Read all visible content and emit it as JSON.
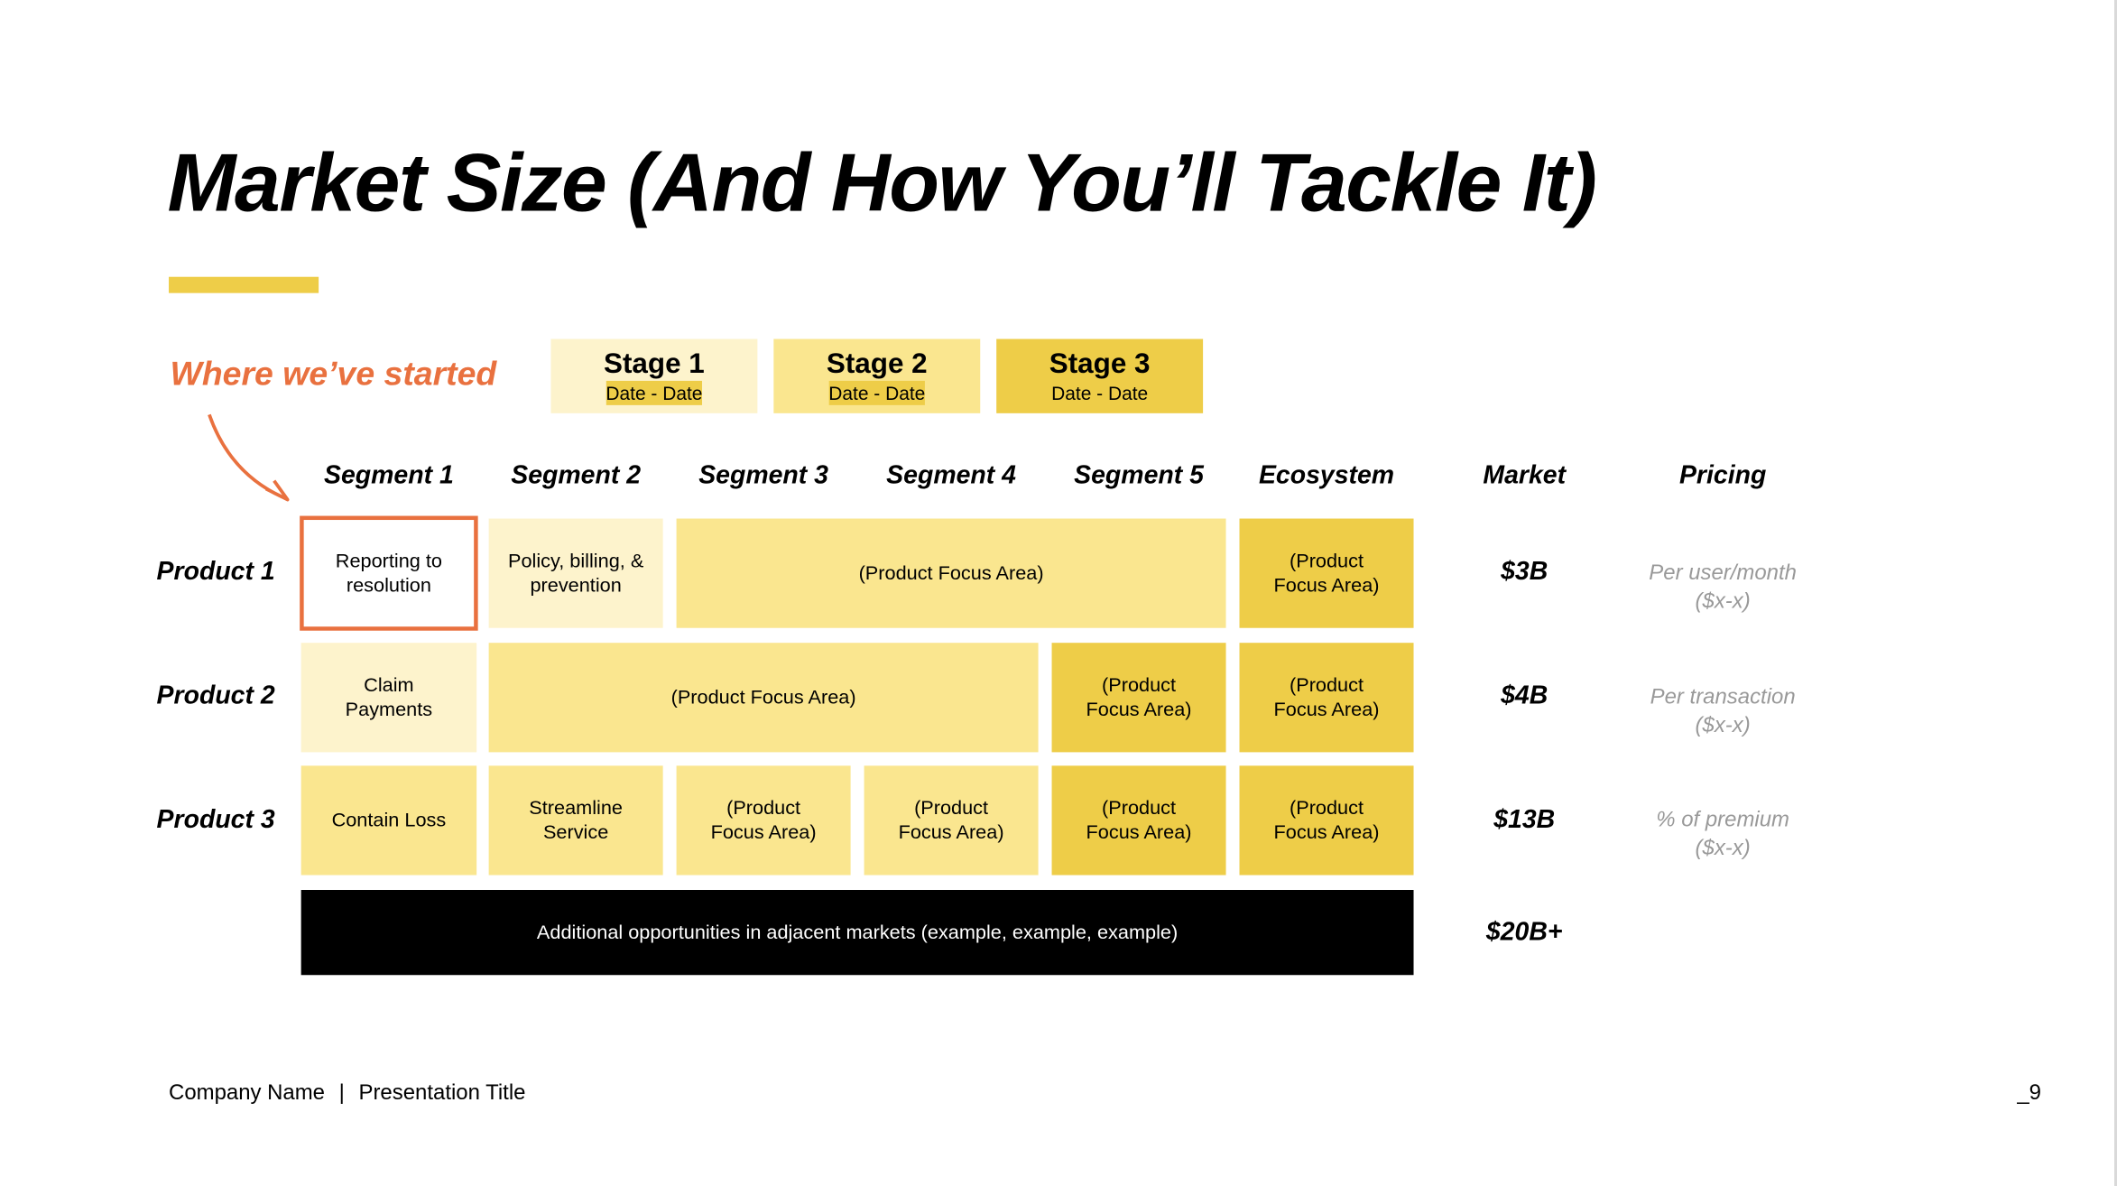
{
  "title": "Market Size (And How You’ll Tackle It)",
  "annotation": "Where we’ve started",
  "colors": {
    "stage1": "#FDF3CC",
    "stage2": "#FAE68F",
    "stage3": "#EECD48",
    "accent": "#E9713F"
  },
  "stages": [
    {
      "name": "Stage 1",
      "dates": "Date - Date"
    },
    {
      "name": "Stage 2",
      "dates": "Date - Date"
    },
    {
      "name": "Stage 3",
      "dates": "Date - Date"
    }
  ],
  "columns": [
    "Segment 1",
    "Segment 2",
    "Segment 3",
    "Segment 4",
    "Segment 5",
    "Ecosystem",
    "Market",
    "Pricing"
  ],
  "rows": [
    {
      "label": "Product 1",
      "cells": [
        "Reporting to resolution",
        "Policy, billing, & prevention",
        "(Product Focus Area)",
        "(Product Focus Area)"
      ],
      "market": "$3B",
      "pricing": "Per user/month",
      "pricing_range": "($x-x)"
    },
    {
      "label": "Product 2",
      "cells": [
        "Claim Payments",
        "(Product Focus Area)",
        "(Product Focus Area)",
        "(Product Focus Area)"
      ],
      "market": "$4B",
      "pricing": "Per transaction",
      "pricing_range": "($x-x)"
    },
    {
      "label": "Product 3",
      "cells": [
        "Contain Loss",
        "Streamline Service",
        "(Product Focus Area)",
        "(Product Focus Area)",
        "(Product Focus Area)",
        "(Product Focus Area)"
      ],
      "market": "$13B",
      "pricing": "% of premium",
      "pricing_range": "($x-x)"
    }
  ],
  "additional": {
    "text": "Additional opportunities in adjacent markets (example, example, example)",
    "market": "$20B+"
  },
  "footer": {
    "company": "Company Name",
    "separator": "|",
    "presentation": "Presentation Title",
    "page": "_9"
  }
}
